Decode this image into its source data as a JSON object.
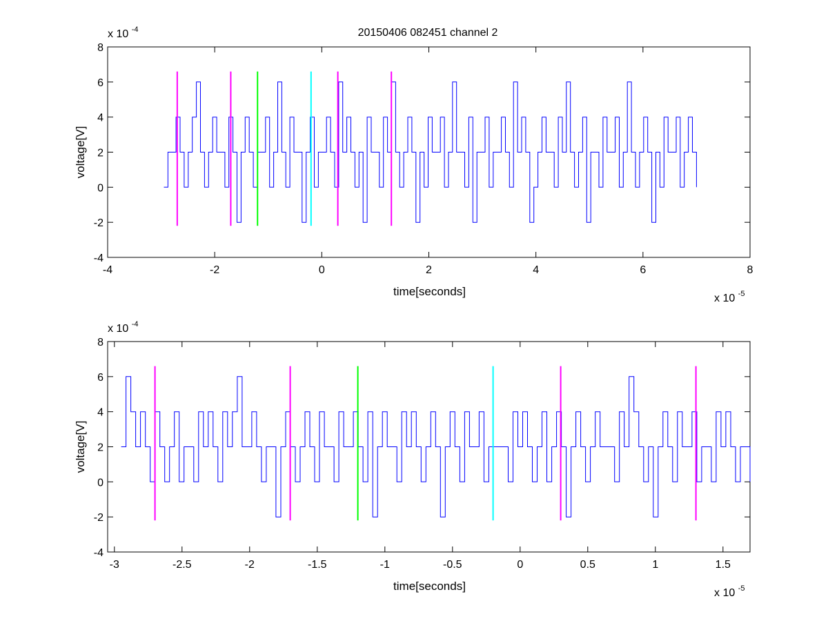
{
  "figure": {
    "title": "20150406 082451 channel 2"
  },
  "chart_data": [
    {
      "type": "line",
      "title": "20150406 082451 channel 2",
      "xlabel": "time[seconds]",
      "ylabel": "voltage[V]",
      "x_exponent_label": "x 10",
      "x_exponent_power": "-5",
      "y_exponent_label": "x 10",
      "y_exponent_power": "-4",
      "xlim": [
        -4,
        8
      ],
      "ylim": [
        -4,
        8
      ],
      "x_ticks": [
        -4,
        -2,
        0,
        2,
        4,
        6,
        8
      ],
      "x_tick_labels": [
        "-4",
        "-2",
        "0",
        "2",
        "4",
        "6",
        "8"
      ],
      "y_ticks": [
        -4,
        -2,
        0,
        2,
        4,
        6,
        8
      ],
      "y_tick_labels": [
        "-4",
        "-2",
        "0",
        "2",
        "4",
        "6",
        "8"
      ],
      "grid": false,
      "series": [
        {
          "color": "#0000ff",
          "x_start": -2.95,
          "x_end": 7.0,
          "levels": [
            0,
            2,
            2,
            4,
            2,
            0,
            2,
            4,
            6,
            2,
            0,
            2,
            4,
            2,
            2,
            0,
            4,
            2,
            -2,
            2,
            4,
            2,
            0,
            2,
            2,
            4,
            0,
            2,
            6,
            2,
            0,
            4,
            2,
            2,
            -2,
            2,
            4,
            0,
            2,
            2,
            4,
            2,
            0,
            6,
            2,
            4,
            2,
            0,
            2,
            -2,
            4,
            2,
            2,
            0,
            4,
            2,
            6,
            2,
            0,
            2,
            4,
            2,
            -2,
            2,
            0,
            4,
            2,
            2,
            4,
            0,
            2,
            6,
            2,
            2,
            0,
            4,
            -2,
            2,
            2,
            4,
            0,
            2,
            2,
            4,
            2,
            0,
            6,
            2,
            4,
            2,
            -2,
            0,
            2,
            4,
            2,
            2,
            0,
            4,
            2,
            6,
            2,
            0,
            2,
            4,
            -2,
            2,
            2,
            0,
            4,
            2,
            2,
            4,
            0,
            2,
            6,
            2,
            0,
            2,
            4,
            2,
            -2,
            2,
            0,
            4,
            2,
            2,
            4,
            0,
            2,
            4,
            2,
            0
          ]
        }
      ],
      "markers": [
        {
          "x": -2.7,
          "y_range": [
            -2.2,
            6.6
          ],
          "color": "#ff00ff"
        },
        {
          "x": -1.7,
          "y_range": [
            -2.2,
            6.6
          ],
          "color": "#ff00ff"
        },
        {
          "x": -1.2,
          "y_range": [
            -2.2,
            6.6
          ],
          "color": "#00ff00"
        },
        {
          "x": -0.2,
          "y_range": [
            -2.2,
            6.6
          ],
          "color": "#00ffff"
        },
        {
          "x": 0.3,
          "y_range": [
            -2.2,
            6.6
          ],
          "color": "#ff00ff"
        },
        {
          "x": 1.3,
          "y_range": [
            -2.2,
            6.6
          ],
          "color": "#ff00ff"
        }
      ]
    },
    {
      "type": "line",
      "title": "",
      "xlabel": "time[seconds]",
      "ylabel": "voltage[V]",
      "x_exponent_label": "x 10",
      "x_exponent_power": "-5",
      "y_exponent_label": "x 10",
      "y_exponent_power": "-4",
      "xlim": [
        -3.05,
        1.7
      ],
      "ylim": [
        -4,
        8
      ],
      "x_ticks": [
        -3,
        -2.5,
        -2,
        -1.5,
        -1,
        -0.5,
        0,
        0.5,
        1,
        1.5
      ],
      "x_tick_labels": [
        "-3",
        "-2.5",
        "-2",
        "-1.5",
        "-1",
        "-0.5",
        "0",
        "0.5",
        "1",
        "1.5"
      ],
      "y_ticks": [
        -4,
        -2,
        0,
        2,
        4,
        6,
        8
      ],
      "y_tick_labels": [
        "-4",
        "-2",
        "0",
        "2",
        "4",
        "6",
        "8"
      ],
      "grid": false,
      "series": [
        {
          "color": "#0000ff",
          "x_start": -2.95,
          "x_end": 1.7,
          "levels": [
            2,
            6,
            4,
            2,
            4,
            2,
            0,
            4,
            2,
            0,
            2,
            4,
            0,
            2,
            2,
            0,
            4,
            2,
            4,
            2,
            0,
            4,
            2,
            4,
            6,
            2,
            2,
            4,
            2,
            0,
            2,
            2,
            -2,
            2,
            4,
            2,
            0,
            2,
            4,
            2,
            0,
            4,
            2,
            2,
            0,
            4,
            2,
            2,
            4,
            2,
            0,
            4,
            -2,
            2,
            4,
            2,
            2,
            0,
            4,
            2,
            4,
            2,
            0,
            2,
            4,
            2,
            -2,
            2,
            4,
            2,
            0,
            4,
            2,
            2,
            4,
            0,
            2,
            2,
            2,
            2,
            0,
            4,
            2,
            4,
            2,
            0,
            2,
            4,
            0,
            2,
            4,
            2,
            -2,
            2,
            4,
            2,
            0,
            2,
            4,
            2,
            2,
            2,
            0,
            4,
            2,
            6,
            4,
            2,
            0,
            2,
            -2,
            2,
            4,
            2,
            0,
            4,
            2,
            2,
            4,
            0,
            2,
            2,
            0,
            4,
            2,
            4,
            2,
            0,
            2,
            2,
            0
          ]
        }
      ],
      "markers": [
        {
          "x": -2.7,
          "y_range": [
            -2.2,
            6.6
          ],
          "color": "#ff00ff"
        },
        {
          "x": -1.7,
          "y_range": [
            -2.2,
            6.6
          ],
          "color": "#ff00ff"
        },
        {
          "x": -1.2,
          "y_range": [
            -2.2,
            6.6
          ],
          "color": "#00ff00"
        },
        {
          "x": -0.2,
          "y_range": [
            -2.2,
            6.6
          ],
          "color": "#00ffff"
        },
        {
          "x": 0.3,
          "y_range": [
            -2.2,
            6.6
          ],
          "color": "#ff00ff"
        },
        {
          "x": 1.3,
          "y_range": [
            -2.2,
            6.6
          ],
          "color": "#ff00ff"
        }
      ]
    }
  ]
}
